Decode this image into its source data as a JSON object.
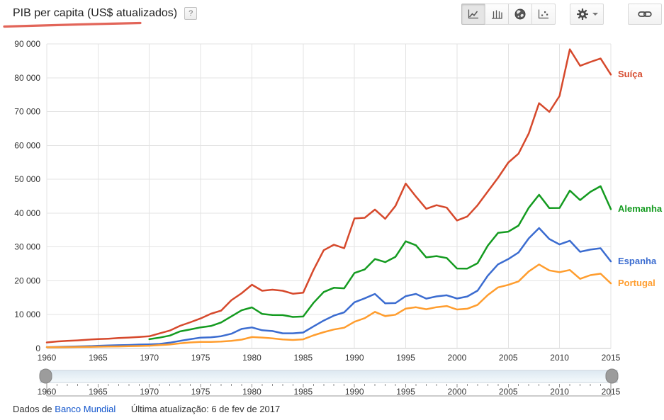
{
  "header": {
    "title": "PIB per capita (US$ atualizados)",
    "help_label": "?",
    "annotation_color": "#e0584b"
  },
  "toolbar": {
    "chart_type_buttons": [
      {
        "name": "line-chart",
        "active": true
      },
      {
        "name": "column-chart",
        "active": false
      },
      {
        "name": "map-chart",
        "active": false
      },
      {
        "name": "scatter-chart",
        "active": false
      }
    ],
    "settings_button": "settings",
    "share_button": "link"
  },
  "chart_data": {
    "type": "line",
    "title": "PIB per capita (US$ atualizados)",
    "grid": true,
    "legend_position": "right-end-labels",
    "ylim": [
      0,
      90000
    ],
    "yticks": [
      0,
      10000,
      20000,
      30000,
      40000,
      50000,
      60000,
      70000,
      80000,
      90000
    ],
    "ytick_labels": [
      "0",
      "10 000",
      "20 000",
      "30 000",
      "40 000",
      "50 000",
      "60 000",
      "70 000",
      "80 000",
      "90 000"
    ],
    "xticks": [
      1960,
      1965,
      1970,
      1975,
      1980,
      1985,
      1990,
      1995,
      2000,
      2005,
      2010,
      2015
    ],
    "x": [
      1960,
      1961,
      1962,
      1963,
      1964,
      1965,
      1966,
      1967,
      1968,
      1969,
      1970,
      1971,
      1972,
      1973,
      1974,
      1975,
      1976,
      1977,
      1978,
      1979,
      1980,
      1981,
      1982,
      1983,
      1984,
      1985,
      1986,
      1987,
      1988,
      1989,
      1990,
      1991,
      1992,
      1993,
      1994,
      1995,
      1996,
      1997,
      1998,
      1999,
      2000,
      2001,
      2002,
      2003,
      2004,
      2005,
      2006,
      2007,
      2008,
      2009,
      2010,
      2011,
      2012,
      2013,
      2014,
      2015
    ],
    "series": [
      {
        "name": "Suíça",
        "color": "#d6492c",
        "values": [
          1787,
          2068,
          2234,
          2390,
          2585,
          2763,
          2892,
          3067,
          3219,
          3401,
          3600,
          4461,
          5293,
          6692,
          7747,
          8884,
          10246,
          11173,
          14245,
          16324,
          18832,
          17059,
          17375,
          17063,
          16181,
          16466,
          23176,
          29030,
          30670,
          29622,
          38427,
          38620,
          41050,
          38330,
          42130,
          48718,
          44865,
          41282,
          42347,
          41613,
          37813,
          38997,
          42323,
          46374,
          50437,
          54952,
          57575,
          63555,
          72488,
          69927,
          74606,
          88416,
          83538,
          84659,
          85685,
          80945
        ]
      },
      {
        "name": "Alemanha",
        "color": "#149b20",
        "values": [
          null,
          null,
          null,
          null,
          null,
          null,
          null,
          null,
          null,
          null,
          2747,
          3193,
          3813,
          5046,
          5639,
          6236,
          6635,
          7682,
          9482,
          11287,
          12138,
          10210,
          9906,
          9864,
          9313,
          9430,
          13460,
          16678,
          17931,
          17764,
          22304,
          23358,
          26438,
          25523,
          27077,
          31658,
          30486,
          26925,
          27289,
          26725,
          23635,
          23607,
          25205,
          30360,
          34166,
          34507,
          36323,
          41587,
          45427,
          41486,
          41532,
          46645,
          43858,
          46286,
          47960,
          41177
        ]
      },
      {
        "name": "Espanha",
        "color": "#3b6cd0",
        "values": [
          396,
          450,
          520,
          609,
          675,
          774,
          889,
          968,
          1023,
          1150,
          1205,
          1350,
          1708,
          2247,
          2749,
          3210,
          3279,
          3627,
          4356,
          5770,
          6209,
          5371,
          5159,
          4478,
          4487,
          4699,
          6513,
          8239,
          9703,
          10681,
          13650,
          14811,
          16112,
          13339,
          13415,
          15471,
          16110,
          14731,
          15394,
          15715,
          14750,
          15370,
          17086,
          21495,
          24861,
          26419,
          28365,
          32550,
          35579,
          32334,
          30737,
          31835,
          28563,
          29212,
          29623,
          25732
        ]
      },
      {
        "name": "Portugal",
        "color": "#ff9d2e",
        "values": [
          360,
          382,
          401,
          430,
          468,
          519,
          566,
          611,
          668,
          731,
          806,
          1000,
          1175,
          1534,
          1786,
          1936,
          1951,
          2027,
          2244,
          2616,
          3368,
          3217,
          2990,
          2676,
          2502,
          2705,
          3862,
          4823,
          5611,
          6128,
          7885,
          8962,
          10827,
          9537,
          9978,
          11781,
          12190,
          11585,
          12204,
          12530,
          11502,
          11736,
          12886,
          15773,
          18046,
          18785,
          19821,
          22780,
          24815,
          23064,
          22540,
          23196,
          20577,
          21653,
          22103,
          19239
        ]
      }
    ]
  },
  "timeline": {
    "start": 1960,
    "end": 2015,
    "label_step": 5
  },
  "footer": {
    "source_prefix": "Dados de",
    "source_link": "Banco Mundial",
    "updated": "Última atualização: 6 de fev de 2017"
  }
}
